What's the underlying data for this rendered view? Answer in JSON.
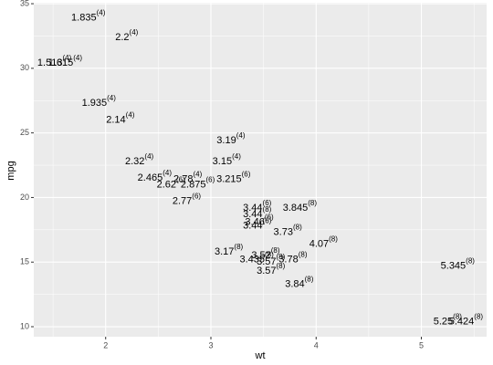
{
  "chart_data": {
    "type": "text",
    "x_label": "wt",
    "y_label": "mpg",
    "x": [
      2.62,
      2.875,
      2.32,
      3.215,
      3.44,
      3.46,
      3.57,
      3.19,
      3.15,
      3.44,
      3.44,
      4.07,
      3.73,
      3.78,
      5.25,
      5.424,
      5.345,
      2.2,
      1.615,
      1.835,
      2.465,
      3.52,
      3.435,
      3.84,
      3.845,
      1.935,
      2.14,
      1.513,
      3.17,
      2.77,
      3.57,
      2.78
    ],
    "values": [
      21.0,
      21.0,
      22.8,
      21.4,
      18.7,
      18.1,
      14.3,
      24.4,
      22.8,
      19.2,
      17.8,
      16.4,
      17.3,
      15.2,
      10.4,
      10.4,
      14.7,
      32.4,
      30.4,
      33.9,
      21.5,
      15.5,
      15.2,
      13.3,
      19.2,
      27.3,
      26.0,
      30.4,
      15.8,
      19.7,
      15.0,
      21.4
    ],
    "labels": [
      "2.62",
      "2.875",
      "2.32",
      "3.215",
      "3.44",
      "3.46",
      "3.57",
      "3.19",
      "3.15",
      "3.44",
      "3.44",
      "4.07",
      "3.73",
      "3.78",
      "5.25",
      "5.424",
      "5.345",
      "2.2",
      "1.615",
      "1.835",
      "2.465",
      "3.52",
      "3.435",
      "3.84",
      "3.845",
      "1.935",
      "2.14",
      "1.513",
      "3.17",
      "2.77",
      "3.57",
      "2.78"
    ],
    "cyl_labels": [
      "(6)",
      "(6)",
      "(4)",
      "(6)",
      "(8)",
      "(6)",
      "(8)",
      "(4)",
      "(4)",
      "(6)",
      "(6)",
      "(8)",
      "(8)",
      "(8)",
      "(8)",
      "(8)",
      "(8)",
      "(4)",
      "(4)",
      "(4)",
      "(4)",
      "(8)",
      "(8)",
      "(8)",
      "(8)",
      "(4)",
      "(4)",
      "(4)",
      "(8)",
      "(6)",
      "(8)",
      "(4)"
    ],
    "xlim": [
      1.317,
      5.62
    ],
    "ylim": [
      9.225,
      35.075
    ],
    "xticks": [
      2,
      3,
      4,
      5
    ],
    "yticks": [
      10,
      15,
      20,
      25,
      30,
      35
    ],
    "x_minor_grid": [
      1.5,
      2.5,
      3.5,
      4.5,
      5.5
    ],
    "y_minor_grid": [
      12.5,
      17.5,
      22.5,
      27.5,
      32.5
    ],
    "panel_color": "#ebebeb",
    "grid": true
  }
}
